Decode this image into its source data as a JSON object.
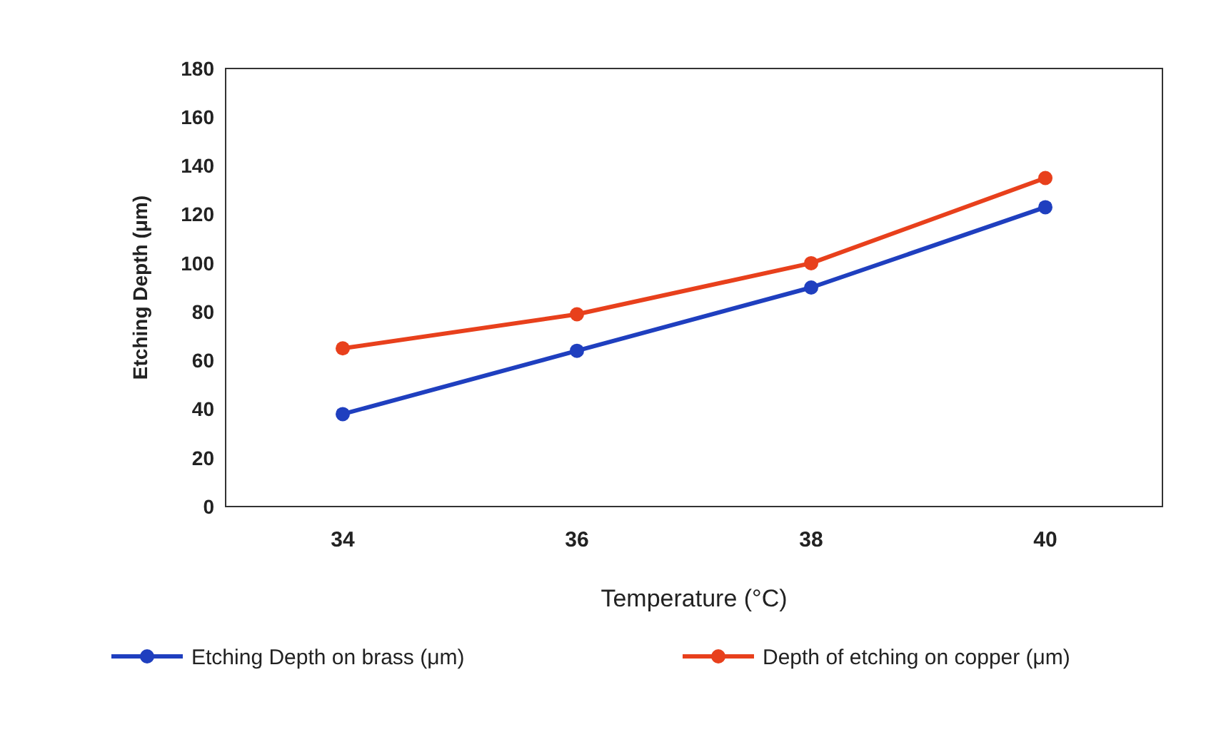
{
  "chart_data": {
    "type": "line",
    "xlabel": "Temperature (°C)",
    "ylabel": "Etching Depth (μm)",
    "categories": [
      "34",
      "36",
      "38",
      "40"
    ],
    "series": [
      {
        "name": "Etching Depth on brass (μm)",
        "color": "#1f3fbf",
        "values": [
          38,
          64,
          90,
          123
        ]
      },
      {
        "name": "Depth of etching on copper (μm)",
        "color": "#e8401c",
        "values": [
          65,
          79,
          100,
          135
        ]
      }
    ],
    "ylim": [
      0,
      180
    ],
    "yticks": [
      0,
      20,
      40,
      60,
      80,
      100,
      120,
      140,
      160,
      180
    ],
    "grid": false,
    "legend": "bottom",
    "marker": "circle",
    "line_style": "solid"
  }
}
